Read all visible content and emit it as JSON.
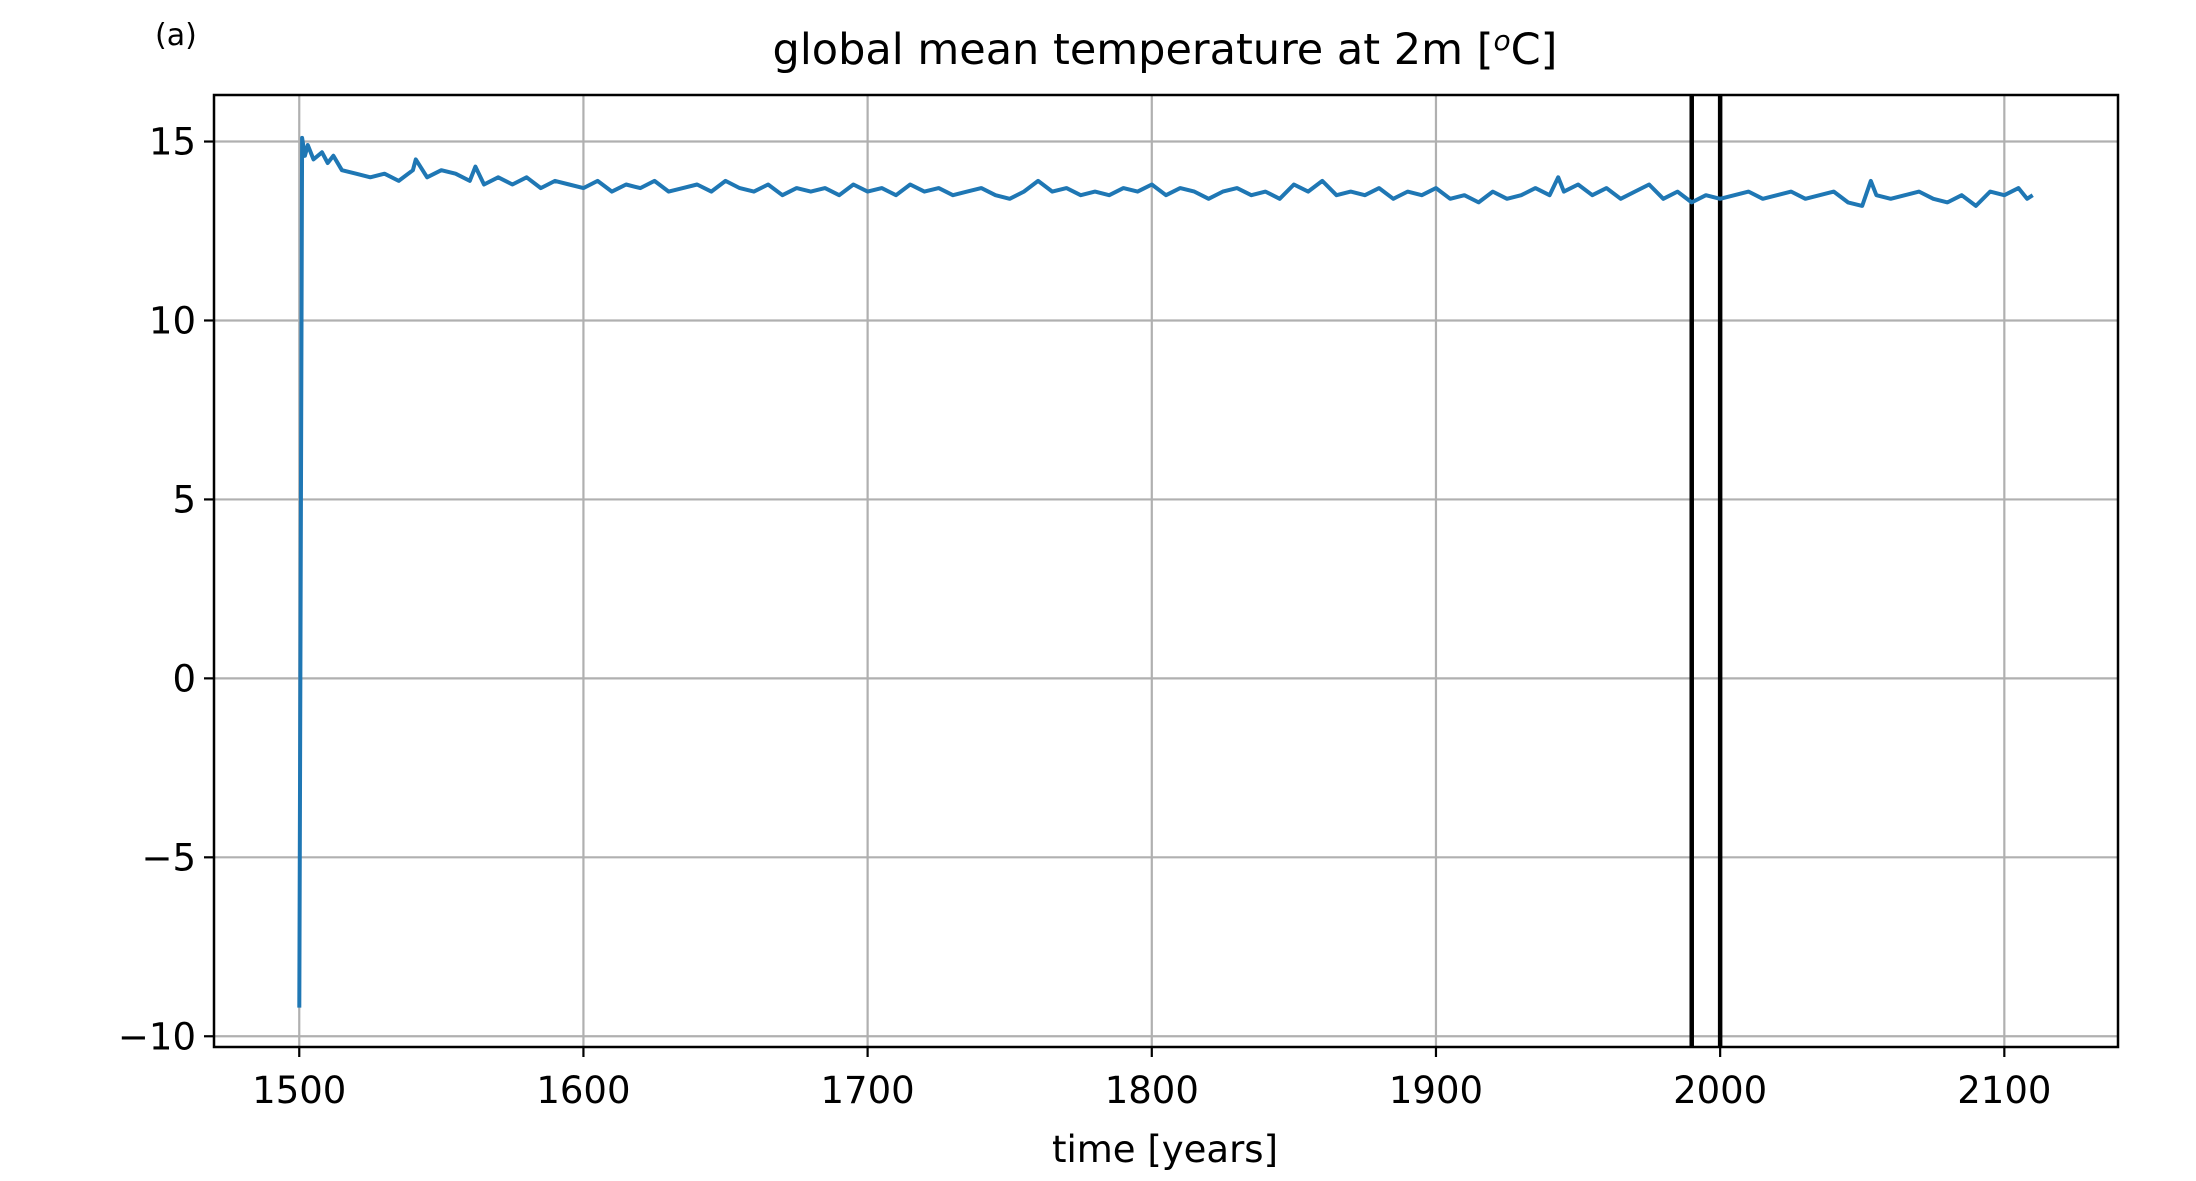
{
  "panel_label": "(a)",
  "chart_data": {
    "type": "line",
    "title_prefix": "global mean temperature at 2m [",
    "title_superscript": "o",
    "title_suffix": "C]",
    "xlabel": "time [years]",
    "ylabel": "",
    "xlim": [
      1470,
      2140
    ],
    "ylim": [
      -10.3,
      16.3
    ],
    "xticks": [
      1500,
      1600,
      1700,
      1800,
      1900,
      2000,
      2100
    ],
    "yticks": [
      -10,
      -5,
      0,
      5,
      10,
      15
    ],
    "ytick_labels": [
      "−10",
      "−5",
      "0",
      "5",
      "10",
      "15"
    ],
    "grid": true,
    "vertical_lines": [
      1990,
      2000
    ],
    "line_color": "#1f77b4",
    "vline_color": "#000000",
    "series": [
      {
        "x": [
          1500,
          1501,
          1502,
          1503,
          1505,
          1508,
          1510,
          1512,
          1515,
          1520,
          1525,
          1530,
          1535,
          1540,
          1541,
          1545,
          1550,
          1555,
          1560,
          1562,
          1565,
          1570,
          1575,
          1580,
          1585,
          1590,
          1595,
          1600,
          1605,
          1610,
          1615,
          1620,
          1625,
          1630,
          1635,
          1640,
          1645,
          1650,
          1655,
          1660,
          1665,
          1670,
          1675,
          1680,
          1685,
          1690,
          1695,
          1700,
          1705,
          1710,
          1715,
          1720,
          1725,
          1730,
          1735,
          1740,
          1745,
          1750,
          1755,
          1760,
          1765,
          1770,
          1775,
          1780,
          1785,
          1790,
          1795,
          1800,
          1805,
          1810,
          1815,
          1820,
          1825,
          1830,
          1835,
          1840,
          1845,
          1850,
          1855,
          1860,
          1865,
          1870,
          1875,
          1880,
          1885,
          1890,
          1895,
          1900,
          1905,
          1910,
          1915,
          1920,
          1925,
          1930,
          1935,
          1940,
          1943,
          1945,
          1950,
          1955,
          1960,
          1965,
          1970,
          1975,
          1980,
          1985,
          1990,
          1995,
          2000,
          2005,
          2010,
          2015,
          2020,
          2025,
          2030,
          2035,
          2040,
          2045,
          2050,
          2053,
          2055,
          2060,
          2065,
          2070,
          2075,
          2080,
          2085,
          2090,
          2095,
          2100,
          2105,
          2108,
          2110
        ],
        "y": [
          -9.2,
          15.1,
          14.6,
          14.9,
          14.5,
          14.7,
          14.4,
          14.6,
          14.2,
          14.1,
          14.0,
          14.1,
          13.9,
          14.2,
          14.5,
          14.0,
          14.2,
          14.1,
          13.9,
          14.3,
          13.8,
          14.0,
          13.8,
          14.0,
          13.7,
          13.9,
          13.8,
          13.7,
          13.9,
          13.6,
          13.8,
          13.7,
          13.9,
          13.6,
          13.7,
          13.8,
          13.6,
          13.9,
          13.7,
          13.6,
          13.8,
          13.5,
          13.7,
          13.6,
          13.7,
          13.5,
          13.8,
          13.6,
          13.7,
          13.5,
          13.8,
          13.6,
          13.7,
          13.5,
          13.6,
          13.7,
          13.5,
          13.4,
          13.6,
          13.9,
          13.6,
          13.7,
          13.5,
          13.6,
          13.5,
          13.7,
          13.6,
          13.8,
          13.5,
          13.7,
          13.6,
          13.4,
          13.6,
          13.7,
          13.5,
          13.6,
          13.4,
          13.8,
          13.6,
          13.9,
          13.5,
          13.6,
          13.5,
          13.7,
          13.4,
          13.6,
          13.5,
          13.7,
          13.4,
          13.5,
          13.3,
          13.6,
          13.4,
          13.5,
          13.7,
          13.5,
          14.0,
          13.6,
          13.8,
          13.5,
          13.7,
          13.4,
          13.6,
          13.8,
          13.4,
          13.6,
          13.3,
          13.5,
          13.4,
          13.5,
          13.6,
          13.4,
          13.5,
          13.6,
          13.4,
          13.5,
          13.6,
          13.3,
          13.2,
          13.9,
          13.5,
          13.4,
          13.5,
          13.6,
          13.4,
          13.3,
          13.5,
          13.2,
          13.6,
          13.5,
          13.7,
          13.4,
          13.5
        ]
      }
    ]
  }
}
